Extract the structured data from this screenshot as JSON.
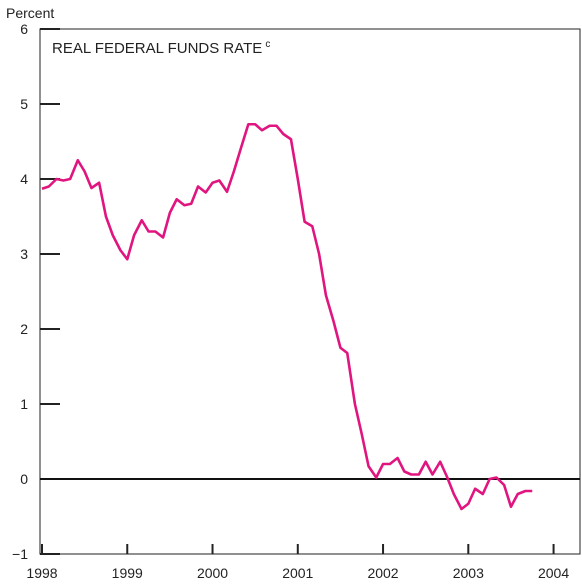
{
  "chart_data": {
    "type": "line",
    "title": "REAL FEDERAL FUNDS RATE",
    "title_superscript": "c",
    "y_label": "Percent",
    "xlim": [
      1998,
      2004.31
    ],
    "xticks": [
      1998,
      1999,
      2000,
      2001,
      2002,
      2003,
      2004
    ],
    "ylim": [
      -1,
      6
    ],
    "yticks": [
      {
        "value": -1,
        "label": "−1"
      },
      0,
      1,
      2,
      3,
      4,
      5,
      6
    ],
    "grid": false,
    "x": [
      1998.0,
      1998.08,
      1998.17,
      1998.25,
      1998.33,
      1998.42,
      1998.5,
      1998.58,
      1998.67,
      1998.75,
      1998.83,
      1998.92,
      1999.0,
      1999.08,
      1999.17,
      1999.25,
      1999.33,
      1999.42,
      1999.5,
      1999.58,
      1999.67,
      1999.75,
      1999.83,
      1999.92,
      2000.0,
      2000.08,
      2000.17,
      2000.25,
      2000.33,
      2000.42,
      2000.5,
      2000.58,
      2000.67,
      2000.75,
      2000.83,
      2000.92,
      2001.0,
      2001.08,
      2001.17,
      2001.25,
      2001.33,
      2001.42,
      2001.5,
      2001.58,
      2001.67,
      2001.75,
      2001.83,
      2001.92,
      2002.0,
      2002.08,
      2002.17,
      2002.25,
      2002.33,
      2002.42,
      2002.5,
      2002.58,
      2002.67,
      2002.75,
      2002.83,
      2002.92,
      2003.0,
      2003.08,
      2003.17,
      2003.25,
      2003.33,
      2003.42,
      2003.5,
      2003.58,
      2003.67,
      2003.75
    ],
    "series": [
      {
        "name": "Real federal funds rate",
        "color": "#e0157f",
        "values": [
          3.87,
          3.9,
          4.0,
          3.98,
          4.0,
          4.25,
          4.1,
          3.88,
          3.95,
          3.5,
          3.25,
          3.05,
          2.93,
          3.25,
          3.45,
          3.3,
          3.3,
          3.22,
          3.55,
          3.73,
          3.65,
          3.67,
          3.9,
          3.82,
          3.95,
          3.98,
          3.83,
          4.1,
          4.4,
          4.73,
          4.73,
          4.65,
          4.71,
          4.71,
          4.6,
          4.53,
          4.0,
          3.43,
          3.37,
          3.0,
          2.45,
          2.1,
          1.75,
          1.68,
          1.0,
          0.6,
          0.17,
          0.02,
          0.2,
          0.2,
          0.28,
          0.1,
          0.06,
          0.06,
          0.23,
          0.06,
          0.23,
          0.03,
          -0.2,
          -0.4,
          -0.33,
          -0.13,
          -0.2,
          0.0,
          0.02,
          -0.08,
          -0.37,
          -0.2,
          -0.16,
          -0.16
        ]
      }
    ]
  }
}
